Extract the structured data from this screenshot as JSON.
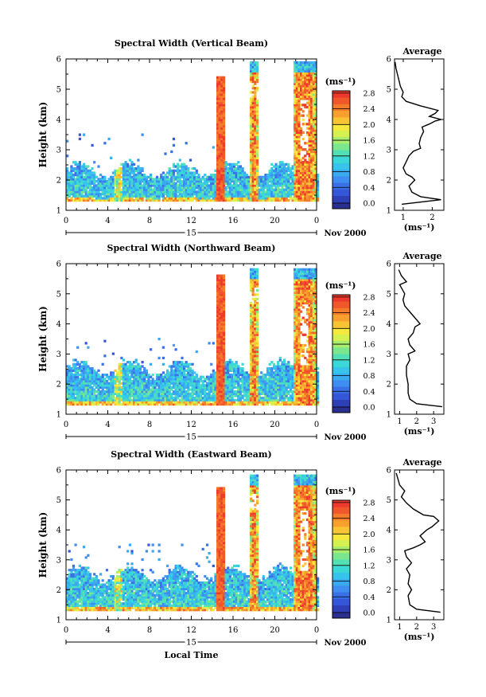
{
  "figure": {
    "date_label": "Nov 2000",
    "day_label": "15",
    "xlabel": "Local Time"
  },
  "chart_data": [
    {
      "type": "heatmap",
      "title": "Spectral Width (Vertical Beam)",
      "xlabel": "Local Time",
      "ylabel": "Height (km)",
      "x_ticks": [
        "0",
        "4",
        "8",
        "12",
        "16",
        "20",
        "0"
      ],
      "xlim": [
        0,
        24
      ],
      "ylim": [
        1,
        6
      ],
      "y_ticks": [
        1,
        2,
        3,
        4,
        5,
        6
      ],
      "colorbar": {
        "unit": "(ms⁻¹)",
        "ticks": [
          "0.0",
          "0.4",
          "0.8",
          "1.2",
          "1.6",
          "2.0",
          "2.4",
          "2.8"
        ],
        "range": [
          0,
          3.0
        ]
      },
      "profile": {
        "title": "Average",
        "xlabel": "(ms⁻¹)",
        "x_ticks": [
          1,
          2
        ],
        "xlim": [
          0.7,
          2.4
        ],
        "points": [
          [
            0.95,
            1.2
          ],
          [
            2.3,
            1.35
          ],
          [
            1.6,
            1.45
          ],
          [
            1.3,
            1.6
          ],
          [
            1.2,
            1.8
          ],
          [
            1.4,
            2.0
          ],
          [
            1.3,
            2.1
          ],
          [
            1.1,
            2.2
          ],
          [
            1.0,
            2.4
          ],
          [
            1.1,
            2.6
          ],
          [
            1.2,
            2.8
          ],
          [
            1.35,
            2.95
          ],
          [
            1.6,
            3.05
          ],
          [
            1.55,
            3.2
          ],
          [
            1.6,
            3.4
          ],
          [
            1.7,
            3.6
          ],
          [
            1.65,
            3.75
          ],
          [
            1.9,
            3.85
          ],
          [
            2.1,
            3.95
          ],
          [
            2.3,
            4.0
          ],
          [
            1.9,
            4.1
          ],
          [
            2.1,
            4.2
          ],
          [
            2.2,
            4.3
          ],
          [
            1.6,
            4.45
          ],
          [
            1.1,
            4.6
          ],
          [
            0.95,
            4.75
          ],
          [
            1.0,
            4.9
          ],
          [
            0.9,
            5.1
          ],
          [
            0.85,
            5.3
          ],
          [
            0.8,
            5.5
          ],
          [
            0.75,
            5.7
          ],
          [
            0.72,
            5.9
          ]
        ]
      },
      "data_ranges": [
        {
          "name": "lower layer",
          "x": [
            0,
            24
          ],
          "y": [
            1.3,
            2.3
          ],
          "values": [
            0.4,
            1.6
          ]
        },
        {
          "name": "burst 1",
          "x": [
            14.2,
            15.0
          ],
          "y": [
            1.3,
            5.4
          ],
          "values": [
            2.4,
            3.0
          ]
        },
        {
          "name": "burst 2",
          "x": [
            17.5,
            18.3
          ],
          "y": [
            1.3,
            5.9
          ],
          "values": [
            2.0,
            3.0
          ]
        },
        {
          "name": "burst 3",
          "x": [
            21.7,
            23.8
          ],
          "y": [
            1.3,
            5.9
          ],
          "values": [
            1.6,
            3.0
          ]
        }
      ]
    },
    {
      "type": "heatmap",
      "title": "Spectral Width (Northward Beam)",
      "xlabel": "Local Time",
      "ylabel": "Height (km)",
      "x_ticks": [
        "0",
        "4",
        "8",
        "12",
        "16",
        "20",
        "0"
      ],
      "xlim": [
        0,
        24
      ],
      "ylim": [
        1,
        6
      ],
      "y_ticks": [
        1,
        2,
        3,
        4,
        5,
        6
      ],
      "colorbar": {
        "unit": "(ms⁻¹)",
        "ticks": [
          "0.0",
          "0.4",
          "0.8",
          "1.2",
          "1.6",
          "2.0",
          "2.4",
          "2.8"
        ],
        "range": [
          0,
          3.0
        ]
      },
      "profile": {
        "title": "Average",
        "xlabel": "(ms⁻¹)",
        "x_ticks": [
          1,
          2,
          3
        ],
        "xlim": [
          0.7,
          3.6
        ],
        "points": [
          [
            3.5,
            1.25
          ],
          [
            2.0,
            1.35
          ],
          [
            1.6,
            1.5
          ],
          [
            1.5,
            1.7
          ],
          [
            1.5,
            2.0
          ],
          [
            1.4,
            2.3
          ],
          [
            1.4,
            2.6
          ],
          [
            1.6,
            2.8
          ],
          [
            1.5,
            3.0
          ],
          [
            1.9,
            3.1
          ],
          [
            1.6,
            3.3
          ],
          [
            1.5,
            3.5
          ],
          [
            1.8,
            3.7
          ],
          [
            1.9,
            3.9
          ],
          [
            2.2,
            4.0
          ],
          [
            1.9,
            4.2
          ],
          [
            1.6,
            4.4
          ],
          [
            1.3,
            4.6
          ],
          [
            1.2,
            4.8
          ],
          [
            1.3,
            5.0
          ],
          [
            1.1,
            5.2
          ],
          [
            1.0,
            5.3
          ],
          [
            1.4,
            5.4
          ],
          [
            1.1,
            5.6
          ],
          [
            0.95,
            5.8
          ]
        ]
      },
      "data_ranges": [
        {
          "name": "lower layer",
          "x": [
            0,
            24
          ],
          "y": [
            1.3,
            2.5
          ],
          "values": [
            0.4,
            1.6
          ]
        },
        {
          "name": "burst 1",
          "x": [
            14.2,
            15.0
          ],
          "y": [
            1.3,
            5.6
          ],
          "values": [
            2.4,
            3.0
          ]
        },
        {
          "name": "burst 2",
          "x": [
            17.5,
            18.3
          ],
          "y": [
            1.3,
            5.8
          ],
          "values": [
            2.0,
            3.0
          ]
        },
        {
          "name": "burst 3",
          "x": [
            21.7,
            23.8
          ],
          "y": [
            1.3,
            5.8
          ],
          "values": [
            1.6,
            3.0
          ]
        }
      ]
    },
    {
      "type": "heatmap",
      "title": "Spectral Width (Eastward Beam)",
      "xlabel": "Local Time",
      "ylabel": "Height (km)",
      "x_ticks": [
        "0",
        "4",
        "8",
        "12",
        "16",
        "20",
        "0"
      ],
      "xlim": [
        0,
        24
      ],
      "ylim": [
        1,
        6
      ],
      "y_ticks": [
        1,
        2,
        3,
        4,
        5,
        6
      ],
      "colorbar": {
        "unit": "(ms⁻¹)",
        "ticks": [
          "0.0",
          "0.4",
          "0.8",
          "1.2",
          "1.6",
          "2.0",
          "2.4",
          "2.8"
        ],
        "range": [
          0,
          3.0
        ]
      },
      "profile": {
        "title": "Average",
        "xlabel": "(ms⁻¹)",
        "x_ticks": [
          1,
          2,
          3
        ],
        "xlim": [
          0.7,
          3.6
        ],
        "points": [
          [
            3.4,
            1.25
          ],
          [
            2.0,
            1.35
          ],
          [
            1.6,
            1.5
          ],
          [
            1.5,
            1.8
          ],
          [
            1.7,
            2.0
          ],
          [
            1.5,
            2.2
          ],
          [
            1.6,
            2.5
          ],
          [
            1.4,
            2.7
          ],
          [
            1.7,
            2.9
          ],
          [
            1.4,
            3.1
          ],
          [
            1.3,
            3.3
          ],
          [
            1.8,
            3.4
          ],
          [
            2.2,
            3.5
          ],
          [
            2.5,
            3.6
          ],
          [
            2.2,
            3.8
          ],
          [
            2.6,
            4.0
          ],
          [
            2.9,
            4.1
          ],
          [
            3.3,
            4.3
          ],
          [
            3.0,
            4.45
          ],
          [
            2.4,
            4.5
          ],
          [
            1.8,
            4.7
          ],
          [
            1.4,
            4.9
          ],
          [
            1.1,
            5.1
          ],
          [
            1.3,
            5.3
          ],
          [
            1.0,
            5.5
          ],
          [
            0.9,
            5.7
          ],
          [
            0.8,
            5.9
          ]
        ]
      },
      "data_ranges": [
        {
          "name": "lower layer",
          "x": [
            0,
            24
          ],
          "y": [
            1.3,
            2.5
          ],
          "values": [
            0.4,
            1.6
          ]
        },
        {
          "name": "burst 1",
          "x": [
            14.2,
            15.0
          ],
          "y": [
            1.3,
            5.4
          ],
          "values": [
            2.4,
            3.0
          ]
        },
        {
          "name": "burst 2",
          "x": [
            17.5,
            18.3
          ],
          "y": [
            1.3,
            5.8
          ],
          "values": [
            2.0,
            3.0
          ]
        },
        {
          "name": "burst 3",
          "x": [
            21.7,
            23.8
          ],
          "y": [
            1.3,
            5.8
          ],
          "values": [
            1.6,
            3.0
          ]
        }
      ]
    }
  ]
}
